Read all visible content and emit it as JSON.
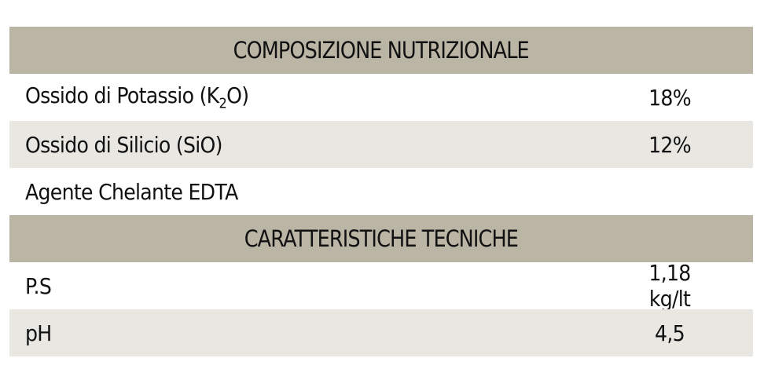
{
  "sections": [
    {
      "title": "COMPOSIZIONE NUTRIZIONALE",
      "rows": [
        {
          "label_pre": "Ossido di Potassio (K",
          "label_sub": "2",
          "label_post": "O)",
          "value": "18%"
        },
        {
          "label": "Ossido di Silicio (SiO)",
          "value": "12%"
        },
        {
          "label": "Agente Chelante EDTA",
          "value": ""
        }
      ]
    },
    {
      "title": "CARATTERISTICHE TECNICHE",
      "rows": [
        {
          "label": "P.S",
          "value": "1,18 kg/lt"
        },
        {
          "label": "pH",
          "value": "4,5"
        }
      ]
    }
  ],
  "colors": {
    "header_bg": "#bbb5a6",
    "stripe_bg": "#e8e7e2"
  }
}
